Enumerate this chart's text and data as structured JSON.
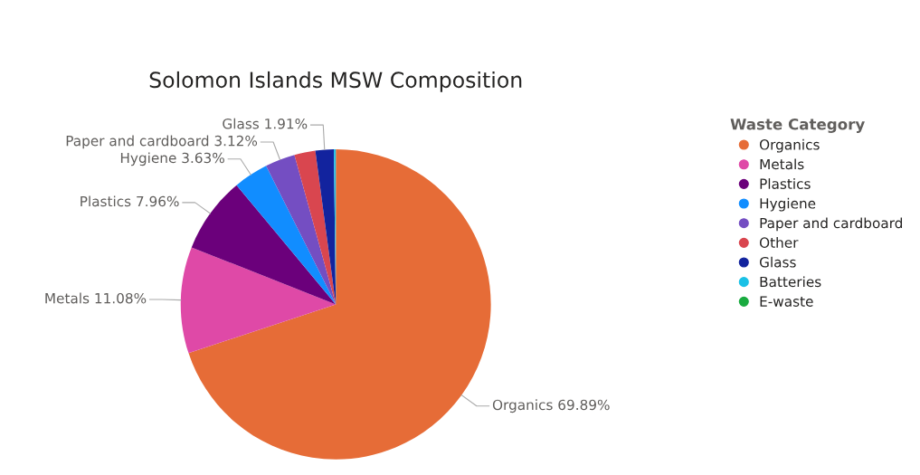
{
  "chart_data": {
    "type": "pie",
    "title": "Solomon Islands MSW Composition",
    "legend_title": "Waste Category",
    "legend": "right",
    "categories": [
      "Organics",
      "Metals",
      "Plastics",
      "Hygiene",
      "Paper and cardboard",
      "Other",
      "Glass",
      "Batteries",
      "E-waste"
    ],
    "values": [
      69.89,
      11.08,
      7.96,
      3.63,
      3.12,
      2.19,
      1.91,
      0.2,
      null
    ],
    "value_labels": [
      "69.89%",
      "11.08%",
      "7.96%",
      "3.63%",
      "3.12%",
      null,
      "1.91%",
      null,
      null
    ],
    "colors": [
      "#e66c37",
      "#df49a7",
      "#6b007b",
      "#118dff",
      "#744ec2",
      "#d9464f",
      "#12239e",
      "#1ac1e6",
      "#1aab40"
    ]
  }
}
